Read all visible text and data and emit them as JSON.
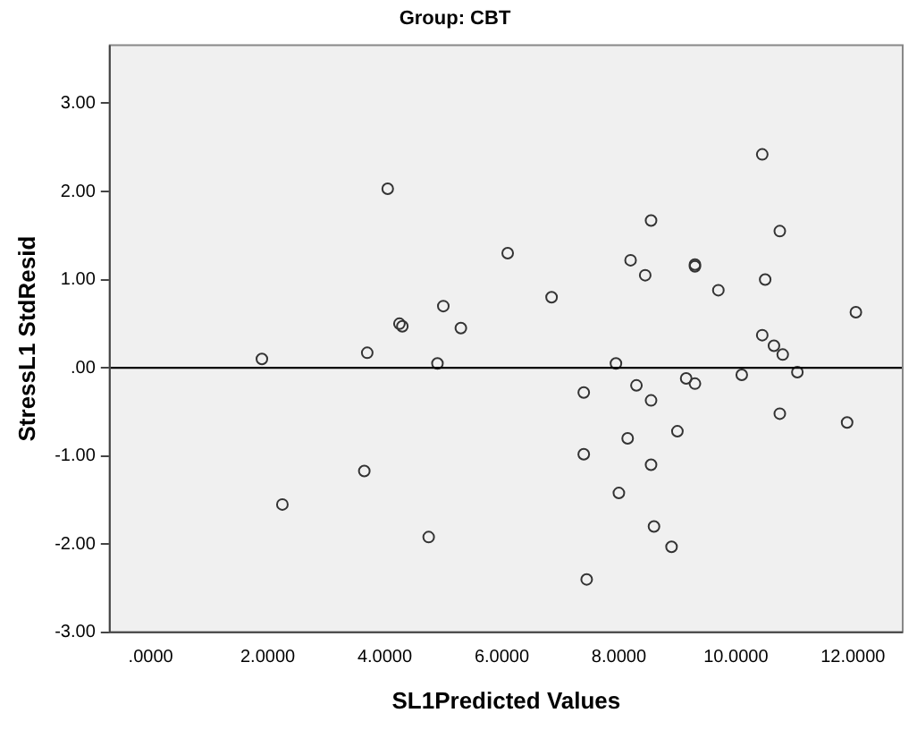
{
  "chart_data": {
    "type": "scatter",
    "title": "Group: CBT",
    "xlabel": "SL1Predicted Values",
    "ylabel": "StressL1 StdResid",
    "marker": "circle",
    "color": "#333333",
    "grid": false,
    "legend": false,
    "xlim": [
      -0.7,
      12.85
    ],
    "ylim": [
      -3,
      3.66
    ],
    "xticks": [
      {
        "value": 0,
        "label": ".0000"
      },
      {
        "value": 2,
        "label": "2.0000"
      },
      {
        "value": 4,
        "label": "4.0000"
      },
      {
        "value": 6,
        "label": "6.0000"
      },
      {
        "value": 8,
        "label": "8.0000"
      },
      {
        "value": 10,
        "label": "10.0000"
      },
      {
        "value": 12,
        "label": "12.0000"
      }
    ],
    "yticks": [
      {
        "value": -3,
        "label": "-3.00"
      },
      {
        "value": -2,
        "label": "-2.00"
      },
      {
        "value": -1,
        "label": "-1.00"
      },
      {
        "value": 0,
        "label": ".00"
      },
      {
        "value": 1,
        "label": "1.00"
      },
      {
        "value": 2,
        "label": "2.00"
      },
      {
        "value": 3,
        "label": "3.00"
      }
    ],
    "ref_lines": [
      {
        "axis": "y",
        "value": 0,
        "color": "#000000",
        "line_style": "solid"
      }
    ],
    "x": [
      1.9,
      3.7,
      3.65,
      2.25,
      4.05,
      4.25,
      4.3,
      5.0,
      5.3,
      4.9,
      4.75,
      6.1,
      6.85,
      7.95,
      7.4,
      7.4,
      7.45,
      8.0,
      8.15,
      8.2,
      8.3,
      8.45,
      8.55,
      8.55,
      8.55,
      8.6,
      8.9,
      9.0,
      9.15,
      9.3,
      9.3,
      9.3,
      9.7,
      10.1,
      10.45,
      10.45,
      10.5,
      10.65,
      10.75,
      10.8,
      10.75,
      11.05,
      11.9,
      12.05
    ],
    "values": [
      0.1,
      0.17,
      -1.17,
      -1.55,
      2.03,
      0.5,
      0.47,
      0.7,
      0.45,
      0.05,
      -1.92,
      1.3,
      0.8,
      0.05,
      -0.28,
      -0.98,
      -2.4,
      -1.42,
      -0.8,
      1.22,
      -0.2,
      1.05,
      1.67,
      -0.37,
      -1.1,
      -1.8,
      -2.03,
      -0.72,
      -0.12,
      -0.18,
      1.17,
      1.15,
      0.88,
      -0.08,
      2.42,
      0.37,
      1.0,
      0.25,
      1.55,
      0.15,
      -0.52,
      -0.05,
      -0.62,
      0.63
    ]
  }
}
